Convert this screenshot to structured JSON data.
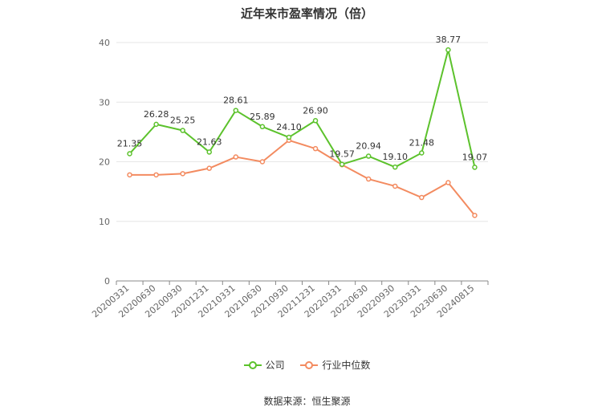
{
  "title": "近年来市盈率情况（倍）",
  "source": "数据来源：恒生聚源",
  "colors": {
    "company": "#5cc22c",
    "industry": "#f38b60",
    "grid": "#e6e6e6",
    "axis": "#888888",
    "text": "#666666"
  },
  "chart_data": {
    "type": "line",
    "title": "近年来市盈率情况（倍）",
    "categories": [
      "20200331",
      "20200630",
      "20200930",
      "20201231",
      "20210331",
      "20210630",
      "20210930",
      "20211231",
      "20220331",
      "20220630",
      "20220930",
      "20230331",
      "20230630",
      "20240815"
    ],
    "ylim": [
      0,
      40
    ],
    "yticks": [
      0,
      10,
      20,
      30,
      40
    ],
    "grid": true,
    "legend_position": "bottom",
    "series": [
      {
        "name": "公司",
        "color": "#5cc22c",
        "show_labels": true,
        "values": [
          21.35,
          26.28,
          25.25,
          21.63,
          28.61,
          25.89,
          24.1,
          26.9,
          19.57,
          20.94,
          19.1,
          21.48,
          38.77,
          19.07
        ]
      },
      {
        "name": "行业中位数",
        "color": "#f38b60",
        "show_labels": false,
        "values": [
          17.8,
          17.8,
          18.0,
          18.9,
          20.8,
          20.0,
          23.6,
          22.2,
          19.5,
          17.1,
          15.9,
          14.0,
          16.5,
          11.0
        ]
      }
    ]
  }
}
